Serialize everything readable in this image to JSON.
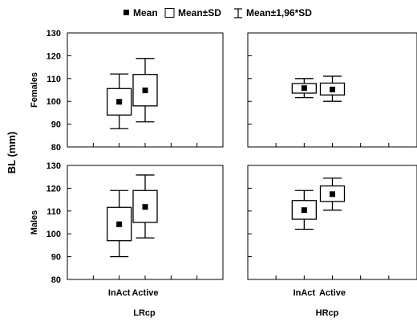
{
  "chart_data": {
    "type": "box",
    "legend": {
      "items": [
        {
          "symbol": "filled-square",
          "label": "Mean"
        },
        {
          "symbol": "open-box",
          "label": "Mean±SD"
        },
        {
          "symbol": "whisker",
          "label": "Mean±1,96*SD"
        }
      ],
      "placement": "top"
    },
    "ylabel": "BL (mm)",
    "ylim": [
      80,
      130
    ],
    "yticks": [
      "80",
      "90",
      "100",
      "110",
      "120",
      "130"
    ],
    "rows": [
      "Females",
      "Males"
    ],
    "cols": [
      "LRcp",
      "HRcp"
    ],
    "categories": [
      "InAct",
      "Active"
    ],
    "panels": [
      {
        "row": "Females",
        "col": "LRcp",
        "groups": [
          {
            "category": "InAct",
            "mean": 99.8,
            "sd_low": 94.0,
            "sd_high": 105.6,
            "ci_low": 88.0,
            "ci_high": 112.0
          },
          {
            "category": "Active",
            "mean": 104.8,
            "sd_low": 98.0,
            "sd_high": 111.8,
            "ci_low": 91.0,
            "ci_high": 118.8
          }
        ]
      },
      {
        "row": "Females",
        "col": "HRcp",
        "groups": [
          {
            "category": "InAct",
            "mean": 105.8,
            "sd_low": 103.6,
            "sd_high": 107.8,
            "ci_low": 101.6,
            "ci_high": 110.0
          },
          {
            "category": "Active",
            "mean": 105.2,
            "sd_low": 102.8,
            "sd_high": 108.0,
            "ci_low": 100.0,
            "ci_high": 111.0
          }
        ]
      },
      {
        "row": "Males",
        "col": "LRcp",
        "groups": [
          {
            "category": "InAct",
            "mean": 104.2,
            "sd_low": 97.0,
            "sd_high": 111.6,
            "ci_low": 90.0,
            "ci_high": 119.0
          },
          {
            "category": "Active",
            "mean": 111.8,
            "sd_low": 105.0,
            "sd_high": 119.0,
            "ci_low": 98.2,
            "ci_high": 125.8
          }
        ]
      },
      {
        "row": "Males",
        "col": "HRcp",
        "groups": [
          {
            "category": "InAct",
            "mean": 110.4,
            "sd_low": 106.4,
            "sd_high": 114.6,
            "ci_low": 102.0,
            "ci_high": 119.0
          },
          {
            "category": "Active",
            "mean": 117.4,
            "sd_low": 114.2,
            "sd_high": 121.0,
            "ci_low": 110.4,
            "ci_high": 124.4
          }
        ]
      }
    ]
  }
}
